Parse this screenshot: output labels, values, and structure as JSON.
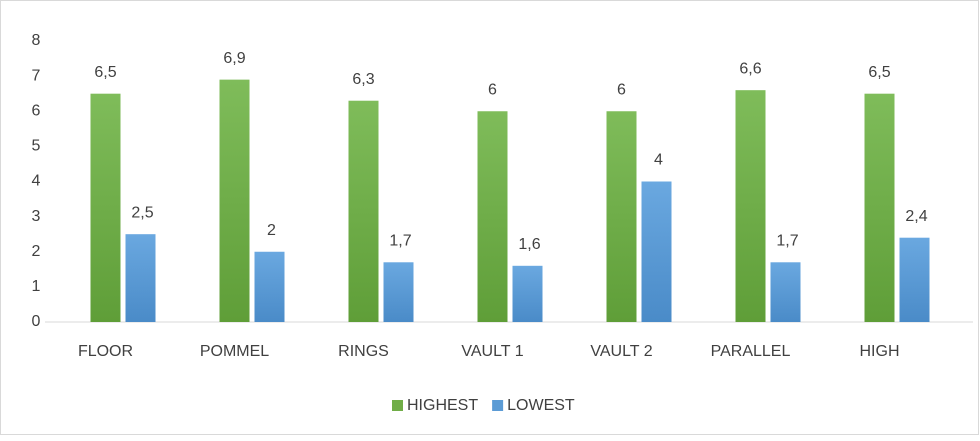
{
  "chart_data": {
    "type": "bar",
    "categories": [
      "FLOOR",
      "POMMEL",
      "RINGS",
      "VAULT 1",
      "VAULT 2",
      "PARALLEL",
      "HIGH"
    ],
    "series": [
      {
        "name": "HIGHEST",
        "color": "#70ad47",
        "values": [
          6.5,
          6.9,
          6.3,
          6,
          6,
          6.6,
          6.5
        ],
        "value_labels": [
          "6,5",
          "6,9",
          "6,3",
          "6",
          "6",
          "6,6",
          "6,5"
        ]
      },
      {
        "name": "LOWEST",
        "color": "#5b9bd5",
        "values": [
          2.5,
          2,
          1.7,
          1.6,
          4,
          1.7,
          2.4
        ],
        "value_labels": [
          "2,5",
          "2",
          "1,7",
          "1,6",
          "4",
          "1,7",
          "2,4"
        ]
      }
    ],
    "ylim": [
      0,
      8
    ],
    "yticks": [
      0,
      1,
      2,
      3,
      4,
      5,
      6,
      7,
      8
    ],
    "grid": false,
    "legend": "bottom"
  }
}
